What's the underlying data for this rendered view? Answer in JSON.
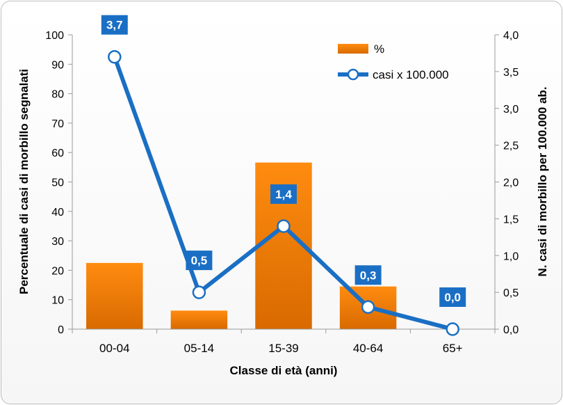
{
  "chart_data": {
    "type": "bar+line",
    "categories": [
      "00-04",
      "05-14",
      "15-39",
      "40-64",
      "65+"
    ],
    "series": [
      {
        "name": "%",
        "type": "bar",
        "axis": "left",
        "values": [
          22.5,
          6.3,
          56.6,
          14.5,
          0
        ],
        "color": "#F08000"
      },
      {
        "name": "casi x 100.000",
        "type": "line",
        "axis": "right",
        "values": [
          3.7,
          0.5,
          1.4,
          0.3,
          0.0
        ],
        "labels": [
          "3,7",
          "0,5",
          "1,4",
          "0,3",
          "0,0"
        ],
        "color": "#1A6FC4"
      }
    ],
    "xlabel": "Classe di età (anni)",
    "ylabel_left": "Percentuale di casi di morbillo segnalati",
    "ylabel_right": "N. casi di morbillo per 100.000 ab.",
    "ylim_left": [
      0,
      100
    ],
    "ylim_right": [
      0,
      4
    ],
    "yticks_left": [
      "0",
      "10",
      "20",
      "30",
      "40",
      "50",
      "60",
      "70",
      "80",
      "90",
      "100"
    ],
    "yticks_right": [
      "0,0",
      "0,5",
      "1,0",
      "1,5",
      "2,0",
      "2,5",
      "3,0",
      "3,5",
      "4,0"
    ],
    "grid": false,
    "legend_position": "top-right"
  }
}
